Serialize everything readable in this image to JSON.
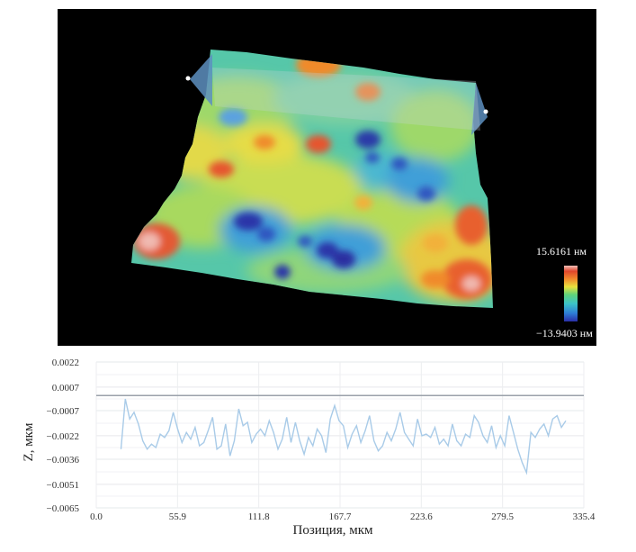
{
  "colorbar": {
    "max_label": "15.6161 нм",
    "min_label": "−13.9403 нм",
    "colors": [
      "#2a2fa8",
      "#2f7fd6",
      "#3cc3c7",
      "#5fd27a",
      "#e8e23e",
      "#f28a2c",
      "#e0452c",
      "#f2c0b8"
    ]
  },
  "chart_data": {
    "type": "line",
    "xlabel": "Позиция, мкм",
    "ylabel": "Z, мкм",
    "xlim": [
      0,
      335.4
    ],
    "ylim": [
      -0.0065,
      0.0022
    ],
    "x_ticks": [
      "0.0",
      "55.9",
      "111.8",
      "167.7",
      "223.6",
      "279.5",
      "335.4"
    ],
    "y_ticks": [
      "0.0022",
      "0.0007",
      "−0.0007",
      "−0.0022",
      "−0.0036",
      "−0.0051",
      "−0.0065"
    ],
    "x_tick_values": [
      0,
      55.9,
      111.8,
      167.7,
      223.6,
      279.5,
      335.4
    ],
    "y_tick_values": [
      0.0022,
      0.0007,
      -0.0007,
      -0.0022,
      -0.0036,
      -0.0051,
      -0.0065
    ],
    "reference_line_y": 0.0002,
    "grid": true,
    "series": [
      {
        "x": [
          17,
          20,
          23,
          26,
          29,
          32,
          35,
          38,
          41,
          44,
          47,
          50,
          53,
          56,
          59,
          62,
          65,
          68,
          71,
          74,
          77,
          80,
          83,
          86,
          89,
          92,
          95,
          98,
          101,
          104,
          107,
          110,
          113,
          116,
          119,
          122,
          125,
          128,
          131,
          134,
          137,
          140,
          143,
          146,
          149,
          152,
          155,
          158,
          161,
          164,
          167,
          170,
          173,
          176,
          179,
          182,
          185,
          188,
          191,
          194,
          197,
          200,
          203,
          206,
          209,
          212,
          215,
          218,
          221,
          224,
          227,
          230,
          233,
          236,
          239,
          242,
          245,
          248,
          251,
          254,
          257,
          260,
          263,
          266,
          269,
          272,
          275,
          278,
          281,
          284,
          287,
          290,
          293,
          296,
          299,
          302,
          305,
          308,
          311,
          314,
          317,
          320,
          323
        ],
        "y": [
          -0.003,
          0.0,
          -0.0012,
          -0.0008,
          -0.0015,
          -0.0025,
          -0.003,
          -0.0027,
          -0.0029,
          -0.0021,
          -0.0023,
          -0.0019,
          -0.0008,
          -0.0018,
          -0.0026,
          -0.002,
          -0.0024,
          -0.0017,
          -0.0028,
          -0.0026,
          -0.0019,
          -0.0011,
          -0.003,
          -0.0028,
          -0.0015,
          -0.0034,
          -0.0025,
          -0.0006,
          -0.0016,
          -0.0014,
          -0.0026,
          -0.0021,
          -0.0018,
          -0.0022,
          -0.0013,
          -0.002,
          -0.003,
          -0.0024,
          -0.0011,
          -0.0026,
          -0.0014,
          -0.0025,
          -0.0033,
          -0.0023,
          -0.0028,
          -0.0018,
          -0.0022,
          -0.0032,
          -0.0012,
          -0.0004,
          -0.0013,
          -0.0016,
          -0.0029,
          -0.0021,
          -0.0016,
          -0.0026,
          -0.0019,
          -0.001,
          -0.0025,
          -0.0031,
          -0.0028,
          -0.002,
          -0.0025,
          -0.0018,
          -0.0008,
          -0.002,
          -0.0024,
          -0.0028,
          -0.0012,
          -0.0022,
          -0.0021,
          -0.0023,
          -0.0017,
          -0.0027,
          -0.0024,
          -0.0028,
          -0.0015,
          -0.0025,
          -0.0028,
          -0.0021,
          -0.0023,
          -0.001,
          -0.0014,
          -0.0022,
          -0.0026,
          -0.0016,
          -0.0029,
          -0.0022,
          -0.0028,
          -0.001,
          -0.002,
          -0.003,
          -0.0038,
          -0.0044,
          -0.002,
          -0.0023,
          -0.0018,
          -0.0015,
          -0.0022,
          -0.0012,
          -0.001,
          -0.0017,
          -0.0013
        ]
      }
    ]
  }
}
